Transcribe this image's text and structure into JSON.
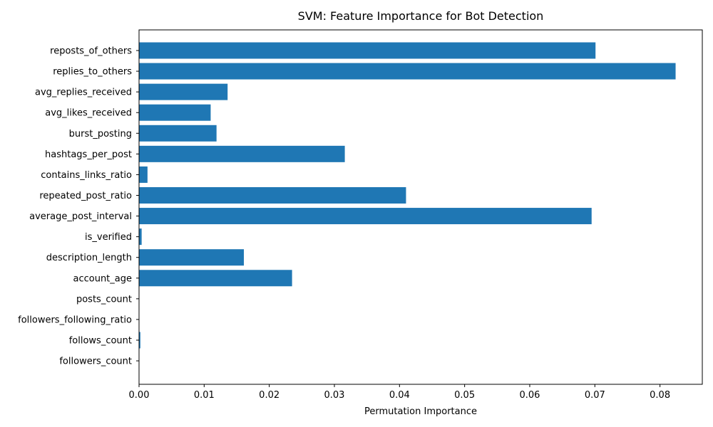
{
  "chart_data": {
    "type": "bar",
    "orientation": "horizontal",
    "title": "SVM: Feature Importance for Bot Detection",
    "xlabel": "Permutation Importance",
    "ylabel": "",
    "xlim": [
      0,
      0.0865
    ],
    "xticks": [
      "0.00",
      "0.01",
      "0.02",
      "0.03",
      "0.04",
      "0.05",
      "0.06",
      "0.07",
      "0.08"
    ],
    "bar_color": "#1f77b4",
    "grid": false,
    "categories": [
      "reposts_of_others",
      "replies_to_others",
      "avg_replies_received",
      "avg_likes_received",
      "burst_posting",
      "hashtags_per_post",
      "contains_links_ratio",
      "repeated_post_ratio",
      "average_post_interval",
      "is_verified",
      "description_length",
      "account_age",
      "posts_count",
      "followers_following_ratio",
      "follows_count",
      "followers_count"
    ],
    "values": [
      0.0701,
      0.0824,
      0.0136,
      0.011,
      0.0119,
      0.0316,
      0.0013,
      0.041,
      0.0695,
      0.0004,
      0.0161,
      0.0235,
      0.0,
      0.0,
      0.0002,
      0.0
    ]
  }
}
